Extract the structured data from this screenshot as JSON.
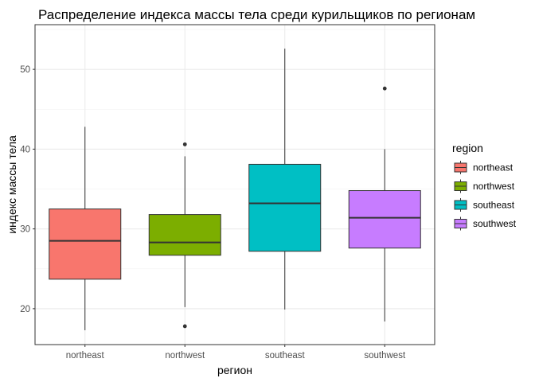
{
  "chart_data": {
    "type": "boxplot",
    "title": "Распределение индекса массы тела среди курильщиков по регионам",
    "xlabel": "регион",
    "ylabel": "индекс массы тела",
    "ylim": [
      15.5,
      55.6
    ],
    "yticks": [
      20,
      30,
      40,
      50
    ],
    "grid": true,
    "legend": {
      "title": "region",
      "placement": "right"
    },
    "categories": [
      "northeast",
      "northwest",
      "southeast",
      "southwest"
    ],
    "boxes": [
      {
        "category": "northeast",
        "color": "#F8766D",
        "min": 17.3,
        "q1": 23.7,
        "median": 28.5,
        "q3": 32.5,
        "max": 42.8,
        "outliers": []
      },
      {
        "category": "northwest",
        "color": "#7CAE00",
        "min": 20.2,
        "q1": 26.7,
        "median": 28.3,
        "q3": 31.8,
        "max": 39.1,
        "outliers": [
          40.6,
          17.8
        ]
      },
      {
        "category": "southeast",
        "color": "#00BFC4",
        "min": 19.9,
        "q1": 27.2,
        "median": 33.2,
        "q3": 38.1,
        "max": 52.6,
        "outliers": []
      },
      {
        "category": "southwest",
        "color": "#C77CFF",
        "min": 18.4,
        "q1": 27.6,
        "median": 31.4,
        "q3": 34.8,
        "max": 40.0,
        "outliers": [
          47.6
        ]
      }
    ]
  }
}
